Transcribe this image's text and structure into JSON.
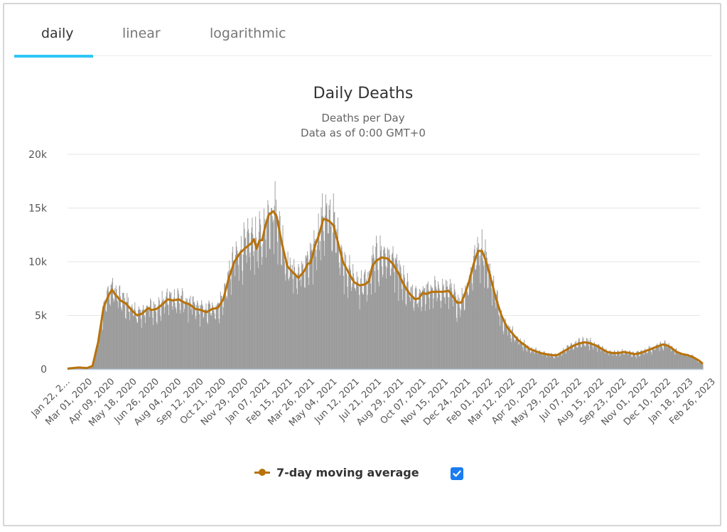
{
  "tabs": [
    {
      "label": "daily",
      "active": true
    },
    {
      "label": "linear",
      "active": false
    },
    {
      "label": "logarithmic",
      "active": false
    }
  ],
  "colors": {
    "tab_accent": "#2fc6f6",
    "bars": "#9a9a9a",
    "moving_average": "#b8720a",
    "checkbox": "#1a7cf0",
    "gridline": "#e6e6e6",
    "axis_line": "#c8d3e6"
  },
  "legend": {
    "label": "7-day moving average",
    "checkbox_checked": true
  },
  "chart_data": {
    "type": "bar",
    "title": "Daily Deaths",
    "subtitle": "Deaths per Day",
    "subtitle2": "Data as of 0:00 GMT+0",
    "xlabel": "",
    "ylabel": "",
    "ylim": [
      0,
      20000
    ],
    "grid": true,
    "legend_position": "bottom",
    "y_ticks": [
      0,
      5000,
      10000,
      15000,
      20000
    ],
    "y_tick_labels": [
      "0",
      "5k",
      "10k",
      "15k",
      "20k"
    ],
    "x_start": "Jan 22, 2020",
    "x_days": 1143,
    "x_tick_interval_days": 40,
    "x_tick_labels": [
      "Jan 22, 2…",
      "Mar 01, 2020",
      "Apr 09, 2020",
      "May 18, 2020",
      "Jun 26, 2020",
      "Aug 04, 2020",
      "Sep 12, 2020",
      "Oct 21, 2020",
      "Nov 29, 2020",
      "Jan 07, 2021",
      "Feb 15, 2021",
      "Mar 26, 2021",
      "May 04, 2021",
      "Jun 12, 2021",
      "Jul 21, 2021",
      "Aug 29, 2021",
      "Oct 07, 2021",
      "Nov 15, 2021",
      "Dec 24, 2021",
      "Feb 01, 2022",
      "Mar 12, 2022",
      "Apr 20, 2022",
      "May 29, 2022",
      "Jul 07, 2022",
      "Aug 15, 2022",
      "Sep 23, 2022",
      "Nov 01, 2022",
      "Dec 10, 2022",
      "Jan 18, 2023",
      "Feb 26, 2023"
    ],
    "series": [
      {
        "name": "Daily deaths",
        "type": "bar",
        "note": "daily values approximated around the moving average with weekly reporting variation"
      },
      {
        "name": "7-day moving average",
        "type": "line",
        "points_day_value": [
          [
            0,
            50
          ],
          [
            20,
            150
          ],
          [
            35,
            100
          ],
          [
            45,
            300
          ],
          [
            55,
            2500
          ],
          [
            65,
            5800
          ],
          [
            75,
            7000
          ],
          [
            80,
            7400
          ],
          [
            85,
            7000
          ],
          [
            95,
            6400
          ],
          [
            105,
            6100
          ],
          [
            115,
            5500
          ],
          [
            125,
            5000
          ],
          [
            135,
            5200
          ],
          [
            145,
            5700
          ],
          [
            150,
            5500
          ],
          [
            160,
            5600
          ],
          [
            170,
            6000
          ],
          [
            180,
            6500
          ],
          [
            190,
            6400
          ],
          [
            200,
            6500
          ],
          [
            210,
            6200
          ],
          [
            220,
            6000
          ],
          [
            230,
            5600
          ],
          [
            240,
            5500
          ],
          [
            250,
            5300
          ],
          [
            260,
            5600
          ],
          [
            270,
            5700
          ],
          [
            280,
            6500
          ],
          [
            290,
            8500
          ],
          [
            300,
            10000
          ],
          [
            310,
            10800
          ],
          [
            320,
            11300
          ],
          [
            330,
            11700
          ],
          [
            335,
            12100
          ],
          [
            340,
            11200
          ],
          [
            345,
            12000
          ],
          [
            350,
            12000
          ],
          [
            355,
            13200
          ],
          [
            362,
            14400
          ],
          [
            370,
            14700
          ],
          [
            376,
            14200
          ],
          [
            385,
            11800
          ],
          [
            395,
            9600
          ],
          [
            405,
            9000
          ],
          [
            415,
            8500
          ],
          [
            425,
            9100
          ],
          [
            432,
            9800
          ],
          [
            437,
            9900
          ],
          [
            445,
            11500
          ],
          [
            452,
            12500
          ],
          [
            460,
            14000
          ],
          [
            470,
            13800
          ],
          [
            478,
            13400
          ],
          [
            485,
            12000
          ],
          [
            495,
            10000
          ],
          [
            505,
            9000
          ],
          [
            515,
            8100
          ],
          [
            525,
            7800
          ],
          [
            535,
            7900
          ],
          [
            542,
            8200
          ],
          [
            548,
            9600
          ],
          [
            555,
            10100
          ],
          [
            565,
            10400
          ],
          [
            575,
            10300
          ],
          [
            585,
            9800
          ],
          [
            595,
            8900
          ],
          [
            605,
            7800
          ],
          [
            615,
            7000
          ],
          [
            625,
            6500
          ],
          [
            632,
            6600
          ],
          [
            638,
            7100
          ],
          [
            645,
            7000
          ],
          [
            655,
            7200
          ],
          [
            665,
            7200
          ],
          [
            675,
            7200
          ],
          [
            685,
            7300
          ],
          [
            692,
            6800
          ],
          [
            700,
            6200
          ],
          [
            708,
            6200
          ],
          [
            715,
            7100
          ],
          [
            722,
            8200
          ],
          [
            730,
            9800
          ],
          [
            738,
            11000
          ],
          [
            745,
            11000
          ],
          [
            752,
            10100
          ],
          [
            760,
            8600
          ],
          [
            770,
            6600
          ],
          [
            780,
            5000
          ],
          [
            790,
            3900
          ],
          [
            800,
            3300
          ],
          [
            810,
            2700
          ],
          [
            820,
            2300
          ],
          [
            830,
            1900
          ],
          [
            840,
            1700
          ],
          [
            850,
            1500
          ],
          [
            860,
            1400
          ],
          [
            870,
            1300
          ],
          [
            880,
            1300
          ],
          [
            890,
            1600
          ],
          [
            900,
            1900
          ],
          [
            910,
            2200
          ],
          [
            920,
            2400
          ],
          [
            930,
            2500
          ],
          [
            940,
            2400
          ],
          [
            950,
            2200
          ],
          [
            960,
            1900
          ],
          [
            970,
            1600
          ],
          [
            980,
            1500
          ],
          [
            990,
            1500
          ],
          [
            1000,
            1600
          ],
          [
            1010,
            1500
          ],
          [
            1020,
            1400
          ],
          [
            1030,
            1500
          ],
          [
            1040,
            1700
          ],
          [
            1050,
            1900
          ],
          [
            1060,
            2100
          ],
          [
            1070,
            2300
          ],
          [
            1078,
            2200
          ],
          [
            1085,
            2000
          ],
          [
            1095,
            1600
          ],
          [
            1105,
            1400
          ],
          [
            1115,
            1300
          ],
          [
            1125,
            1100
          ],
          [
            1135,
            800
          ],
          [
            1142,
            500
          ]
        ]
      }
    ]
  }
}
